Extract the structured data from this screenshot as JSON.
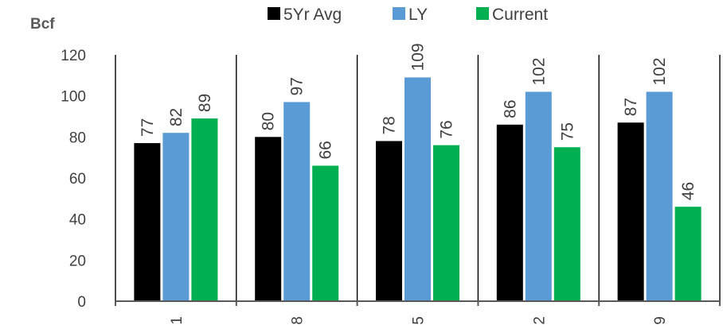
{
  "chart_data": {
    "type": "bar",
    "ylabel": "Bcf",
    "ylim": [
      0,
      120
    ],
    "yticks": [
      0,
      20,
      40,
      60,
      80,
      100,
      120
    ],
    "categories": [
      "1",
      "8",
      "5",
      "2",
      "9"
    ],
    "series": [
      {
        "name": "5Yr Avg",
        "color": "#000000",
        "values": [
          77,
          80,
          78,
          86,
          87
        ]
      },
      {
        "name": "LY",
        "color": "#5b9bd5",
        "values": [
          82,
          97,
          109,
          102,
          102
        ]
      },
      {
        "name": "Current",
        "color": "#00b050",
        "values": [
          89,
          66,
          76,
          75,
          46
        ]
      }
    ],
    "legend": "top",
    "grid": false
  }
}
